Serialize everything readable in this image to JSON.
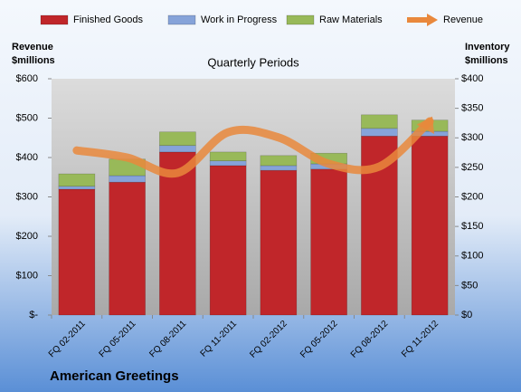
{
  "chart_data": {
    "type": "bar",
    "title": "Quarterly Periods",
    "footer": "American Greetings",
    "y_label": [
      "Revenue",
      "$millions"
    ],
    "y2_label": [
      "Inventory",
      "$millions"
    ],
    "categories": [
      "FQ 02-2011",
      "FQ 05-2011",
      "FQ 08-2011",
      "FQ 11-2011",
      "FQ 02-2012",
      "FQ 05-2012",
      "FQ 08-2012",
      "FQ 11-2012"
    ],
    "stacked": true,
    "series": [
      {
        "name": "Finished Goods",
        "color": "#c0262a",
        "axis": "y2",
        "values": [
          213,
          225,
          276,
          253,
          245,
          247,
          303,
          303
        ]
      },
      {
        "name": "Work in Progress",
        "color": "#86a3d9",
        "axis": "y2",
        "values": [
          5,
          11,
          11,
          8,
          8,
          9,
          13,
          8
        ]
      },
      {
        "name": "Raw Materials",
        "color": "#98b959",
        "axis": "y2",
        "values": [
          21,
          28,
          23,
          15,
          17,
          18,
          23,
          19
        ]
      },
      {
        "name": "Revenue",
        "color": "#e9883c",
        "type": "line",
        "axis": "y",
        "values": [
          418,
          400,
          361,
          464,
          451,
          384,
          377,
          492
        ]
      }
    ],
    "ylim": [
      0,
      600
    ],
    "yticks": [
      {
        "value": 0,
        "label": "$-"
      },
      {
        "value": 100,
        "label": "$100"
      },
      {
        "value": 200,
        "label": "$200"
      },
      {
        "value": 300,
        "label": "$300"
      },
      {
        "value": 400,
        "label": "$400"
      },
      {
        "value": 500,
        "label": "$500"
      },
      {
        "value": 600,
        "label": "$600"
      }
    ],
    "y2lim": [
      0,
      400
    ],
    "y2ticks": [
      {
        "value": 0,
        "label": "$0"
      },
      {
        "value": 50,
        "label": "$50"
      },
      {
        "value": 100,
        "label": "$100"
      },
      {
        "value": 150,
        "label": "$150"
      },
      {
        "value": 200,
        "label": "$200"
      },
      {
        "value": 250,
        "label": "$250"
      },
      {
        "value": 300,
        "label": "$300"
      },
      {
        "value": 350,
        "label": "$350"
      },
      {
        "value": 400,
        "label": "$400"
      }
    ]
  }
}
